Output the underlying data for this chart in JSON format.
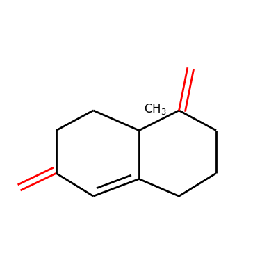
{
  "background_color": "#ffffff",
  "bond_color": "#000000",
  "oxygen_color": "#ff0000",
  "line_width": 2.0,
  "figsize": [
    4.0,
    4.0
  ],
  "dpi": 100
}
